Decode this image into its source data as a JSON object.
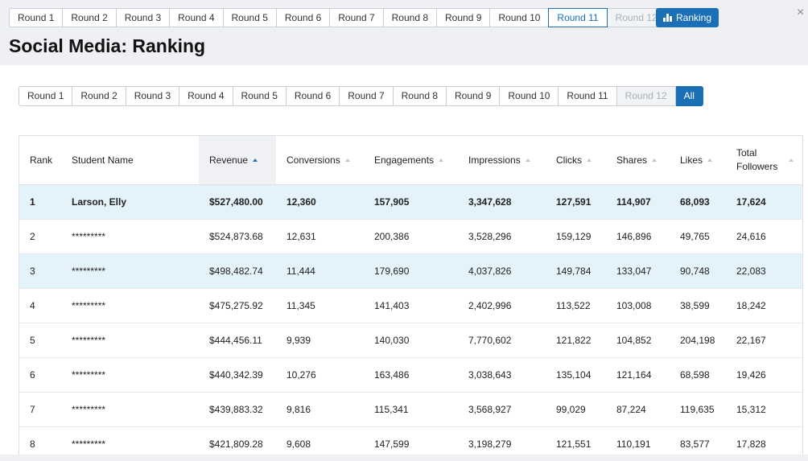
{
  "top_tabs": [
    "Round 1",
    "Round 2",
    "Round 3",
    "Round 4",
    "Round 5",
    "Round 6",
    "Round 7",
    "Round 8",
    "Round 9",
    "Round 10",
    "Round 11",
    "Round 12"
  ],
  "top_active_index": 10,
  "top_disabled_index": 11,
  "ranking_button": {
    "label": "Ranking",
    "icon": "bar-chart-icon"
  },
  "close_label": "×",
  "page_title": "Social Media: Ranking",
  "inner_tabs": [
    "Round 1",
    "Round 2",
    "Round 3",
    "Round 4",
    "Round 5",
    "Round 6",
    "Round 7",
    "Round 8",
    "Round 9",
    "Round 10",
    "Round 11",
    "Round 12",
    "All"
  ],
  "inner_disabled_index": 11,
  "inner_active_index": 12,
  "accent_color": "#1a6fb5",
  "highlight_color": "#e4f2f9",
  "table": {
    "columns": [
      {
        "label": "Rank",
        "sortable": false
      },
      {
        "label": "Student Name",
        "sortable": false
      },
      {
        "label": "Revenue",
        "sortable": true,
        "sorted": true
      },
      {
        "label": "Conversions",
        "sortable": true
      },
      {
        "label": "Engagements",
        "sortable": true
      },
      {
        "label": "Impressions",
        "sortable": true
      },
      {
        "label": "Clicks",
        "sortable": true
      },
      {
        "label": "Shares",
        "sortable": true
      },
      {
        "label": "Likes",
        "sortable": true
      },
      {
        "label": "Total Followers",
        "sortable": true
      }
    ],
    "rows": [
      {
        "cells": [
          "1",
          "Larson, Elly",
          "$527,480.00",
          "12,360",
          "157,905",
          "3,347,628",
          "127,591",
          "114,907",
          "68,093",
          "17,624"
        ],
        "highlight": true,
        "bold": true
      },
      {
        "cells": [
          "2",
          "*********",
          "$524,873.68",
          "12,631",
          "200,386",
          "3,528,296",
          "159,129",
          "146,896",
          "49,765",
          "24,616"
        ]
      },
      {
        "cells": [
          "3",
          "*********",
          "$498,482.74",
          "11,444",
          "179,690",
          "4,037,826",
          "149,784",
          "133,047",
          "90,748",
          "22,083"
        ],
        "highlight": true
      },
      {
        "cells": [
          "4",
          "*********",
          "$475,275.92",
          "11,345",
          "141,403",
          "2,402,996",
          "113,522",
          "103,008",
          "38,599",
          "18,242"
        ]
      },
      {
        "cells": [
          "5",
          "*********",
          "$444,456.11",
          "9,939",
          "140,030",
          "7,770,602",
          "121,822",
          "104,852",
          "204,198",
          "22,167"
        ]
      },
      {
        "cells": [
          "6",
          "*********",
          "$440,342.39",
          "10,276",
          "163,486",
          "3,038,643",
          "135,104",
          "121,164",
          "68,598",
          "19,426"
        ]
      },
      {
        "cells": [
          "7",
          "*********",
          "$439,883.32",
          "9,816",
          "115,341",
          "3,568,927",
          "99,029",
          "87,224",
          "119,635",
          "15,312"
        ]
      },
      {
        "cells": [
          "8",
          "*********",
          "$421,809.28",
          "9,608",
          "147,599",
          "3,198,279",
          "121,551",
          "110,191",
          "83,577",
          "17,828"
        ]
      }
    ]
  }
}
